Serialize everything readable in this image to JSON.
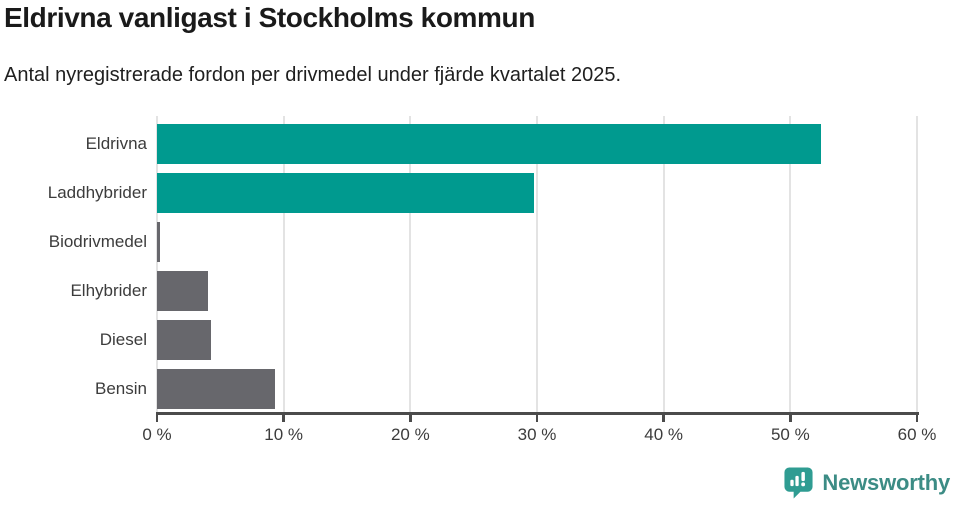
{
  "title": "Eldrivna vanligast i Stockholms kommun",
  "subtitle": "Antal nyregistrerade fordon per drivmedel under fjärde kvartalet 2025.",
  "chart_data": {
    "type": "bar",
    "orientation": "horizontal",
    "title": "Eldrivna vanligast i Stockholms kommun",
    "subtitle": "Antal nyregistrerade fordon per drivmedel under fjärde kvartalet 2025.",
    "categories": [
      "Eldrivna",
      "Laddhybrider",
      "Biodrivmedel",
      "Elhybrider",
      "Diesel",
      "Bensin"
    ],
    "values": [
      52.4,
      29.8,
      0.2,
      4.0,
      4.3,
      9.3
    ],
    "unit": "%",
    "xlim": [
      0,
      60
    ],
    "x_tick_values": [
      0,
      10,
      20,
      30,
      40,
      50,
      60
    ],
    "x_tick_labels": [
      "0 %",
      "10 %",
      "20 %",
      "30 %",
      "40 %",
      "50 %",
      "60 %"
    ],
    "grid": true,
    "legend": false,
    "bar_colors": [
      "#009a8f",
      "#009a8f",
      "#67676c",
      "#67676c",
      "#67676c",
      "#67676c"
    ],
    "highlight_color": "#009a8f",
    "default_color": "#67676c",
    "gridline_color": "#e3e3e3",
    "axis_color": "#4b4b4b"
  },
  "branding": {
    "logo_text": "Newsworthy",
    "logo_icon": "bar-chart-speech-bubble-icon",
    "icon_color": "#2f9c92",
    "text_color": "#3c8c85"
  }
}
